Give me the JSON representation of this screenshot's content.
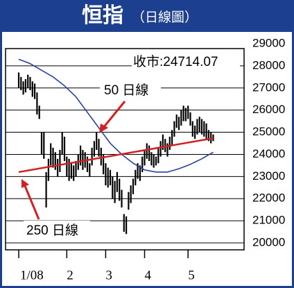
{
  "chart_data": {
    "type": "ohlc",
    "title": "恒指",
    "subtitle": "（日線圖）",
    "close_label": "收市:24714.07",
    "annotations": [
      "50 日線",
      "250 日線"
    ],
    "categories": [
      "1/08",
      null,
      null,
      null,
      null,
      null,
      null,
      null,
      null,
      null,
      null,
      null,
      null,
      null,
      null,
      null,
      null,
      null,
      null,
      null,
      null,
      "2",
      null,
      null,
      null,
      null,
      null,
      null,
      null,
      null,
      null,
      null,
      null,
      null,
      null,
      null,
      null,
      null,
      "3",
      null,
      null,
      null,
      null,
      null,
      null,
      null,
      null,
      null,
      null,
      null,
      null,
      null,
      null,
      null,
      null,
      "4",
      null,
      null,
      null,
      null,
      null,
      null,
      null,
      null,
      null,
      null,
      null,
      null,
      null,
      null,
      null,
      null,
      null,
      null,
      "5",
      null,
      null,
      null,
      null,
      null,
      null,
      null,
      null,
      null,
      null,
      null
    ],
    "high": [
      27700,
      27500,
      27300,
      27400,
      27600,
      27500,
      27300,
      27200,
      26800,
      26200,
      25000,
      25000,
      23200,
      23800,
      24500,
      24300,
      24100,
      23800,
      24200,
      25000,
      24800,
      23900,
      23800,
      23600,
      23500,
      23700,
      24000,
      24400,
      24200,
      24100,
      23900,
      23600,
      24300,
      24600,
      25000,
      24700,
      24300,
      24000,
      23600,
      23400,
      23300,
      23000,
      22800,
      23200,
      22900,
      22400,
      21300,
      21200,
      22300,
      22600,
      22900,
      23300,
      23600,
      23500,
      23900,
      24200,
      24500,
      24400,
      24100,
      24000,
      23900,
      24300,
      24600,
      24900,
      24700,
      24500,
      24800,
      25100,
      25500,
      25800,
      25700,
      26000,
      26200,
      26100,
      26200,
      25900,
      25500,
      25300,
      25600,
      25700,
      25600,
      25500,
      25400,
      25100,
      25000,
      24900
    ],
    "low": [
      27000,
      26900,
      26700,
      26800,
      27000,
      26900,
      26600,
      26500,
      25800,
      25600,
      24000,
      23800,
      21600,
      22800,
      23500,
      23400,
      23300,
      23000,
      23200,
      24000,
      23700,
      23000,
      22800,
      22900,
      22800,
      23000,
      23300,
      23500,
      23300,
      23400,
      23200,
      23000,
      23500,
      23900,
      24200,
      23900,
      23500,
      23100,
      22600,
      22500,
      22600,
      22000,
      21800,
      22300,
      21900,
      21600,
      20500,
      20400,
      21500,
      21800,
      22200,
      22600,
      22900,
      22800,
      23200,
      23500,
      23800,
      23700,
      23500,
      23400,
      23500,
      23600,
      23900,
      24200,
      24100,
      23900,
      24200,
      24400,
      24800,
      25200,
      25100,
      25300,
      25500,
      25500,
      25600,
      25300,
      24800,
      24700,
      24900,
      25000,
      24900,
      24800,
      24700,
      24600,
      24500,
      24600
    ],
    "series": [
      {
        "name": "50 日線",
        "color": "#2b3fa0",
        "values": [
          28300,
          28260,
          28220,
          28180,
          28140,
          28100,
          28040,
          27980,
          27920,
          27860,
          27800,
          27740,
          27680,
          27620,
          27560,
          27500,
          27420,
          27340,
          27260,
          27180,
          27100,
          27000,
          26900,
          26800,
          26700,
          26600,
          26460,
          26320,
          26180,
          26040,
          25900,
          25760,
          25620,
          25480,
          25340,
          25200,
          25060,
          24920,
          24780,
          24640,
          24500,
          24400,
          24300,
          24200,
          24100,
          24000,
          23920,
          23840,
          23760,
          23680,
          23600,
          23540,
          23480,
          23420,
          23360,
          23300,
          23280,
          23260,
          23240,
          23220,
          23200,
          23200,
          23200,
          23200,
          23200,
          23200,
          23230,
          23260,
          23290,
          23320,
          23350,
          23390,
          23430,
          23470,
          23510,
          23550,
          23600,
          23650,
          23700,
          23750,
          23800,
          23860,
          23920,
          23980,
          24040,
          24100
        ]
      },
      {
        "name": "250 日線",
        "color": "#d42020",
        "values": [
          23200,
          23218,
          23236,
          23254,
          23272,
          23290,
          23308,
          23326,
          23344,
          23362,
          23380,
          23398,
          23416,
          23434,
          23452,
          23470,
          23488,
          23506,
          23524,
          23542,
          23560,
          23578,
          23596,
          23614,
          23632,
          23650,
          23668,
          23686,
          23704,
          23722,
          23740,
          23758,
          23776,
          23794,
          23812,
          23830,
          23848,
          23866,
          23884,
          23902,
          23920,
          23938,
          23956,
          23974,
          23992,
          24010,
          24028,
          24046,
          24064,
          24082,
          24100,
          24118,
          24136,
          24154,
          24172,
          24190,
          24208,
          24226,
          24244,
          24262,
          24280,
          24298,
          24316,
          24334,
          24352,
          24370,
          24388,
          24406,
          24424,
          24442,
          24460,
          24478,
          24496,
          24514,
          24532,
          24550,
          24568,
          24586,
          24604,
          24622,
          24640,
          24658,
          24676,
          24694,
          24712,
          24730
        ]
      }
    ],
    "bar_color": "#000000",
    "ylim": [
      20000,
      29000
    ],
    "yticks": [
      20000,
      21000,
      22000,
      23000,
      24000,
      25000,
      26000,
      27000,
      28000,
      29000
    ],
    "grid": true
  }
}
